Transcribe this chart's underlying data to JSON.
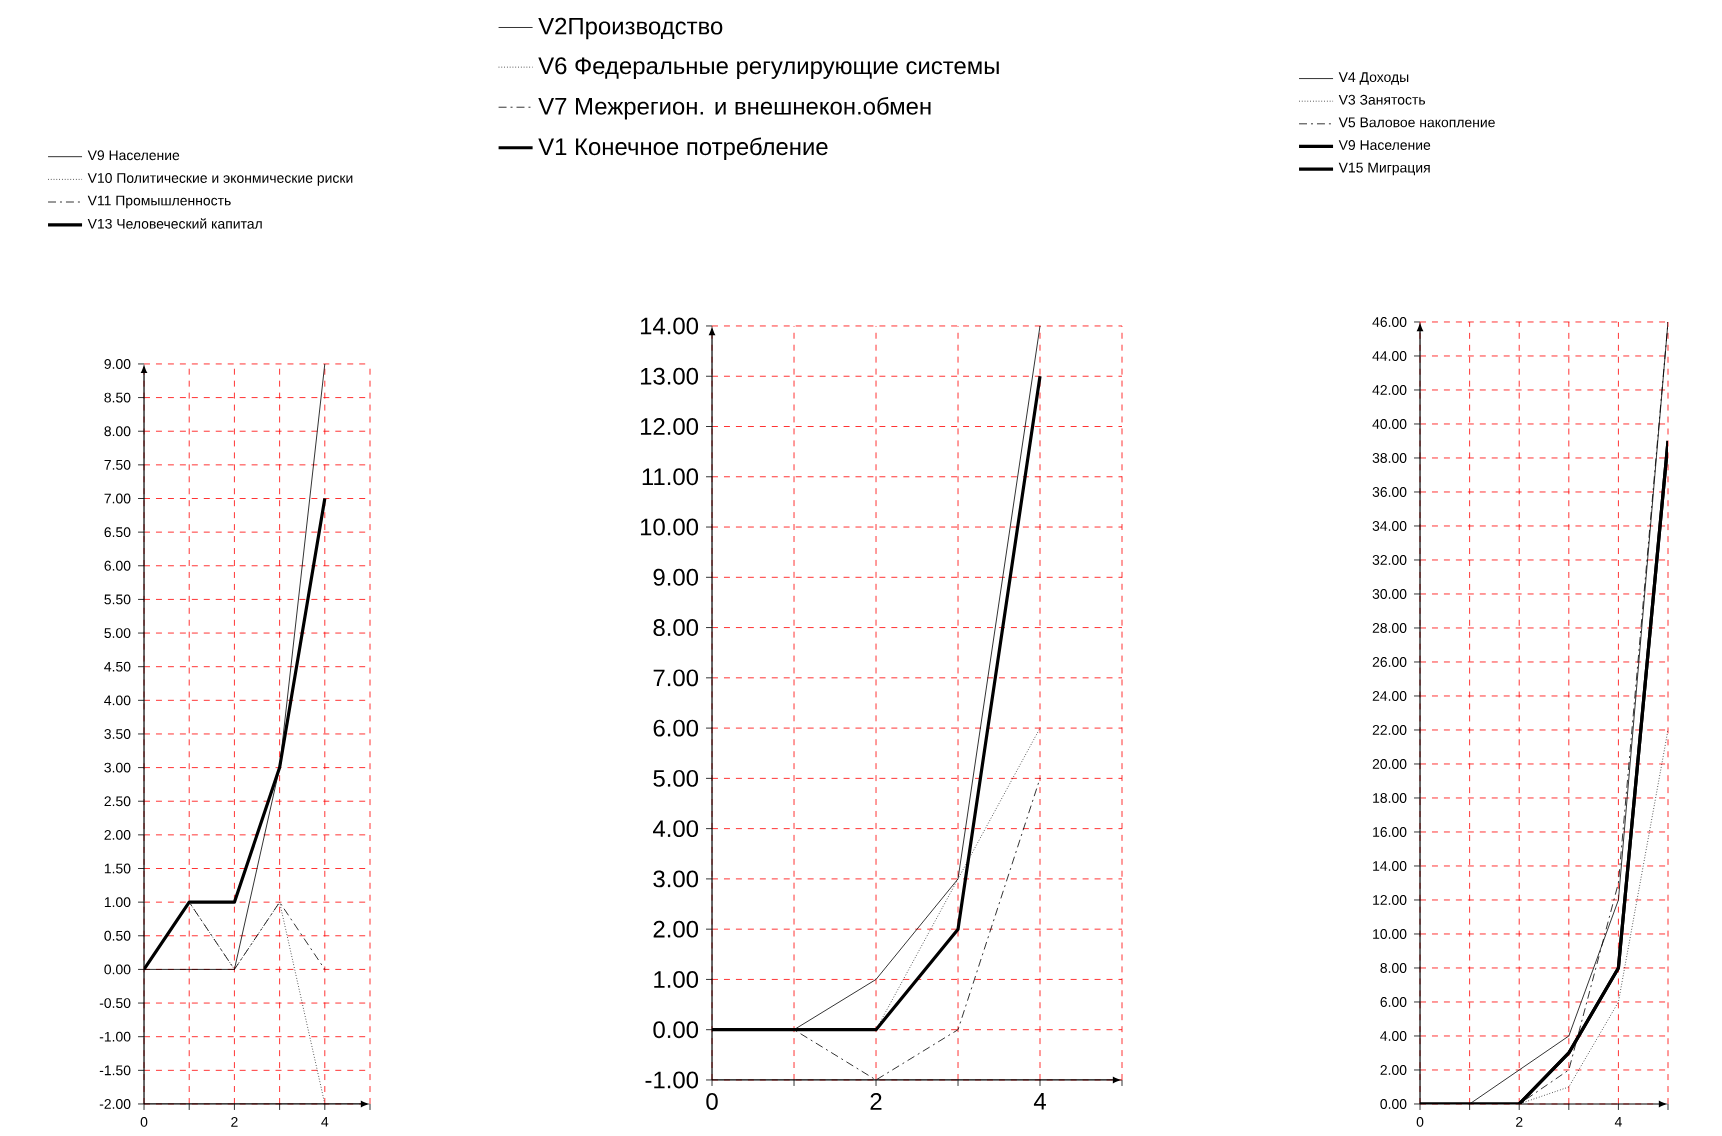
{
  "chart_data": [
    {
      "type": "line",
      "x": [
        0,
        1,
        2,
        3,
        4
      ],
      "xlim": [
        0,
        5
      ],
      "ylim": [
        -2,
        9
      ],
      "xticks": [
        0,
        {
          "value": 1,
          "label": null
        },
        2,
        {
          "value": 3,
          "label": null
        },
        4,
        {
          "value": 5,
          "label": null
        }
      ],
      "yticks": [
        {
          "value": -2,
          "label": "-2.00"
        },
        {
          "value": -1.5,
          "label": "-1.50"
        },
        {
          "value": -1,
          "label": "-1.00"
        },
        {
          "value": -0.5,
          "label": "-0.50"
        },
        {
          "value": 0,
          "label": "0.00"
        },
        {
          "value": 0.5,
          "label": "0.50"
        },
        {
          "value": 1,
          "label": "1.00"
        },
        {
          "value": 1.5,
          "label": "1.50"
        },
        {
          "value": 2,
          "label": "2.00"
        },
        {
          "value": 2.5,
          "label": "2.50"
        },
        {
          "value": 3,
          "label": "3.00"
        },
        {
          "value": 3.5,
          "label": "3.50"
        },
        {
          "value": 4,
          "label": "4.00"
        },
        {
          "value": 4.5,
          "label": "4.50"
        },
        {
          "value": 5,
          "label": "5.00"
        },
        {
          "value": 5.5,
          "label": "5.50"
        },
        {
          "value": 6,
          "label": "6.00"
        },
        {
          "value": 6.5,
          "label": "6.50"
        },
        {
          "value": 7,
          "label": "7.00"
        },
        {
          "value": 7.5,
          "label": "7.50"
        },
        {
          "value": 8,
          "label": "8.00"
        },
        {
          "value": 8.5,
          "label": "8.50"
        },
        {
          "value": 9,
          "label": "9.00"
        }
      ],
      "grid": true,
      "legend": "top",
      "marker": "none",
      "series": [
        {
          "name": "V9 Население",
          "color": "#000000",
          "line_style": "solid",
          "values": [
            0,
            0,
            0,
            3,
            9
          ]
        },
        {
          "name": "V10 Политические и эконмические риски",
          "color": "#000000",
          "line_style": "dotted",
          "values": [
            0,
            1,
            0,
            1,
            -2
          ]
        },
        {
          "name": "V11 Промышленность",
          "color": "#000000",
          "line_style": "dashed",
          "values": [
            0,
            1,
            0,
            1,
            0
          ]
        },
        {
          "name": "V13 Человеческий капитал",
          "color": "#000000",
          "line_style": "solid",
          "values": [
            0,
            1,
            1,
            3,
            7
          ]
        }
      ]
    },
    {
      "type": "line",
      "x": [
        0,
        1,
        2,
        3,
        4
      ],
      "xlim": [
        0,
        5
      ],
      "ylim": [
        -1,
        14
      ],
      "xticks": [
        0,
        {
          "value": 1,
          "label": null
        },
        2,
        {
          "value": 3,
          "label": null
        },
        4,
        {
          "value": 5,
          "label": null
        }
      ],
      "yticks": [
        {
          "value": -1,
          "label": "-1.00"
        },
        {
          "value": 0,
          "label": "0.00"
        },
        {
          "value": 1,
          "label": "1.00"
        },
        {
          "value": 2,
          "label": "2.00"
        },
        {
          "value": 3,
          "label": "3.00"
        },
        {
          "value": 4,
          "label": "4.00"
        },
        {
          "value": 5,
          "label": "5.00"
        },
        {
          "value": 6,
          "label": "6.00"
        },
        {
          "value": 7,
          "label": "7.00"
        },
        {
          "value": 8,
          "label": "8.00"
        },
        {
          "value": 9,
          "label": "9.00"
        },
        {
          "value": 10,
          "label": "10.00"
        },
        {
          "value": 11,
          "label": "11.00"
        },
        {
          "value": 12,
          "label": "12.00"
        },
        {
          "value": 13,
          "label": "13.00"
        },
        {
          "value": 14,
          "label": "14.00"
        }
      ],
      "grid": true,
      "legend": "top",
      "marker": "none",
      "series": [
        {
          "name": "V2Производство",
          "color": "#000000",
          "line_style": "solid",
          "values": [
            0,
            0,
            1,
            3,
            14
          ]
        },
        {
          "name": "V6 Федеральные регулирующие системы",
          "color": "#000000",
          "line_style": "dotted",
          "values": [
            0,
            0,
            0,
            3,
            6
          ]
        },
        {
          "name": "V7 Межрегион. и внешнекон.обмен",
          "color": "#000000",
          "line_style": "dashed",
          "values": [
            0,
            0,
            -1,
            0,
            5
          ]
        },
        {
          "name": "V1 Конечное потребление",
          "color": "#000000",
          "line_style": "solid",
          "values": [
            0,
            0,
            0,
            2,
            13
          ]
        }
      ]
    },
    {
      "type": "line",
      "x": [
        0,
        1,
        2,
        3,
        4,
        5
      ],
      "xlim": [
        0,
        5
      ],
      "ylim": [
        0,
        46
      ],
      "xticks": [
        0,
        {
          "value": 1,
          "label": null
        },
        2,
        {
          "value": 3,
          "label": null
        },
        4,
        {
          "value": 5,
          "label": null
        }
      ],
      "yticks": [
        {
          "value": 0,
          "label": "0.00"
        },
        {
          "value": 2,
          "label": "2.00"
        },
        {
          "value": 4,
          "label": "4.00"
        },
        {
          "value": 6,
          "label": "6.00"
        },
        {
          "value": 8,
          "label": "8.00"
        },
        {
          "value": 10,
          "label": "10.00"
        },
        {
          "value": 12,
          "label": "12.00"
        },
        {
          "value": 14,
          "label": "14.00"
        },
        {
          "value": 16,
          "label": "16.00"
        },
        {
          "value": 18,
          "label": "18.00"
        },
        {
          "value": 20,
          "label": "20.00"
        },
        {
          "value": 22,
          "label": "22.00"
        },
        {
          "value": 24,
          "label": "24.00"
        },
        {
          "value": 26,
          "label": "26.00"
        },
        {
          "value": 28,
          "label": "28.00"
        },
        {
          "value": 30,
          "label": "30.00"
        },
        {
          "value": 32,
          "label": "32.00"
        },
        {
          "value": 34,
          "label": "34.00"
        },
        {
          "value": 36,
          "label": "36.00"
        },
        {
          "value": 38,
          "label": "38.00"
        },
        {
          "value": 40,
          "label": "40.00"
        },
        {
          "value": 42,
          "label": "42.00"
        },
        {
          "value": 44,
          "label": "44.00"
        },
        {
          "value": 46,
          "label": "46.00"
        }
      ],
      "grid": true,
      "legend": "top",
      "marker": "none",
      "series": [
        {
          "name": "V4 Доходы",
          "color": "#000000",
          "line_style": "solid",
          "values": [
            0,
            0,
            2,
            4,
            12,
            46
          ]
        },
        {
          "name": "V3 Занятость",
          "color": "#000000",
          "line_style": "dotted",
          "values": [
            0,
            0,
            0,
            1,
            6,
            22
          ]
        },
        {
          "name": "V5 Валовое накопление",
          "color": "#000000",
          "line_style": "dashed",
          "values": [
            0,
            0,
            0,
            2,
            13,
            46
          ]
        },
        {
          "name": "V9 Население",
          "color": "#000000",
          "line_style": "solid",
          "values": [
            0,
            0,
            0,
            3,
            8,
            39
          ]
        },
        {
          "name": "V15 Миграция",
          "color": "#000000",
          "line_style": "solid",
          "values": [
            0,
            0,
            0,
            3,
            8,
            39
          ]
        }
      ]
    }
  ]
}
